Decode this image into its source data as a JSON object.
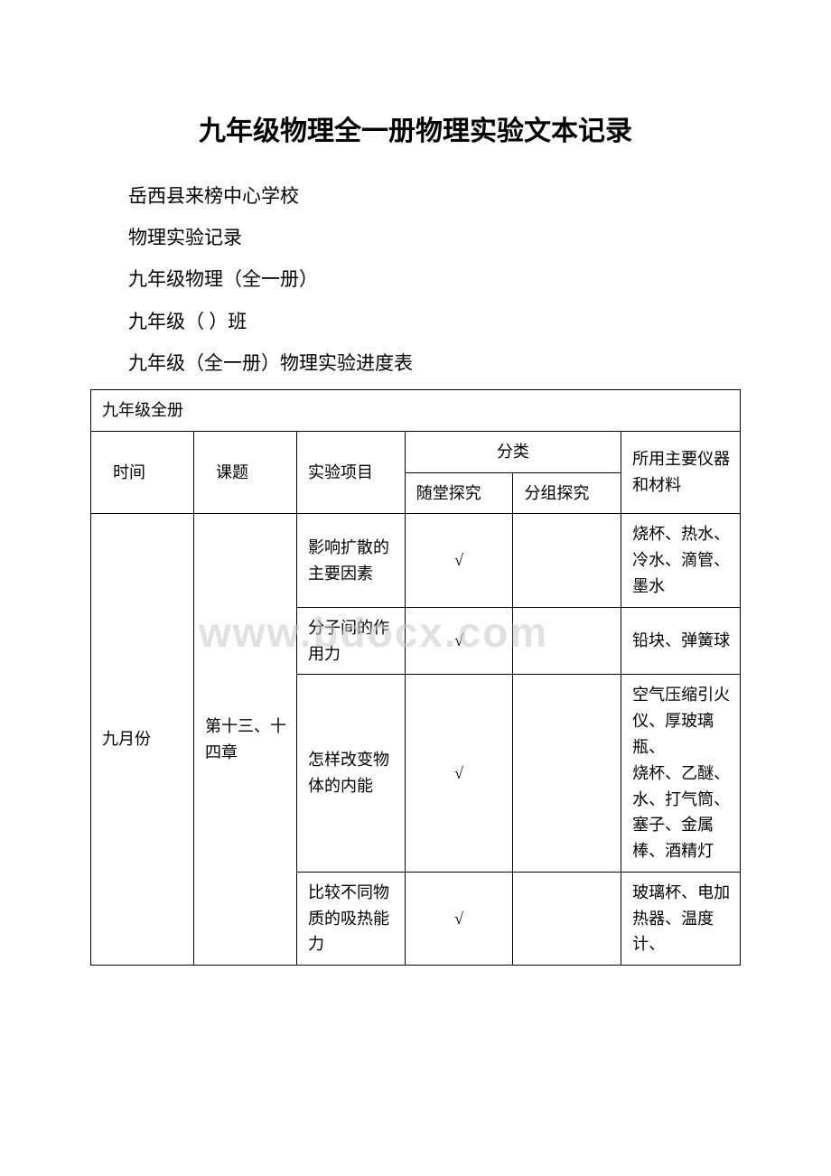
{
  "title": "九年级物理全一册物理实验文本记录",
  "lines": {
    "l1": "岳西县来榜中心学校",
    "l2": "物理实验记录",
    "l3": "九年级物理（全一册）",
    "l4": "九年级（ ）班",
    "l5": "九年级（全一册）物理实验进度表"
  },
  "table": {
    "caption": "九年级全册",
    "headers": {
      "time": "时间",
      "topic": "课题",
      "experiment": "实验项目",
      "category": "分类",
      "cat_sub1": "随堂探究",
      "cat_sub2": "分组探究",
      "materials": "所用主要仪器和材料"
    },
    "body": {
      "time": "九月份",
      "topic": "第十三、十四章",
      "rows": [
        {
          "exp": "影响扩散的主要因素",
          "c1": "√",
          "c2": "",
          "mat": "烧杯、热水、冷水、滴管、墨水"
        },
        {
          "exp": "分子间的作用力",
          "c1": "√",
          "c2": "",
          "mat": "铅块、弹簧球"
        },
        {
          "exp": "怎样改变物体的内能",
          "c1": "√",
          "c2": "",
          "mat": "空气压缩引火仪、厚玻璃瓶、\n烧杯、乙醚、水、打气筒、塞子、金属棒、酒精灯"
        },
        {
          "exp": "比较不同物质的吸热能力",
          "c1": "√",
          "c2": "",
          "mat": "玻璃杯、电加热器、温度计、"
        }
      ]
    }
  },
  "watermark": "www.bdocx.com",
  "colors": {
    "text": "#000000",
    "background": "#ffffff",
    "border": "#000000",
    "watermark": "rgba(200,200,200,0.55)"
  },
  "fonts": {
    "title_size": 30,
    "body_size": 21,
    "table_size": 18,
    "watermark_size": 46
  }
}
